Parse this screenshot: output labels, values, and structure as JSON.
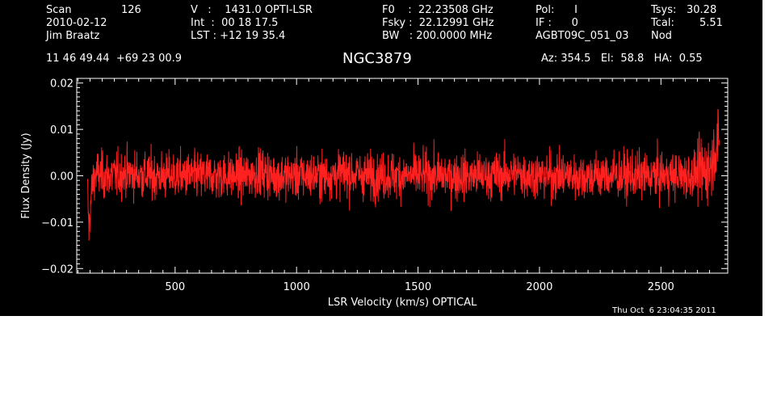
{
  "header": {
    "col1": {
      "scan_label": "Scan",
      "scan_value": "126",
      "date": "2010-02-12",
      "observer": "Jim Braatz"
    },
    "col2": {
      "v_line": "V   :    1431.0 OPTI-LSR",
      "int_line": "Int  :  00 18 17.5",
      "lst_line": "LST : +12 19 35.4"
    },
    "col3": {
      "f0_line": "F0    :  22.23508 GHz",
      "fsky_line": "Fsky :  22.12991 GHz",
      "bw_line": "BW   : 200.0000 MHz"
    },
    "col4": {
      "pol_line": "Pol:      I",
      "if_line": "IF :      0",
      "project": "AGBT09C_051_03"
    },
    "col5": {
      "tsys_label": "Tsys:",
      "tsys_value": "30.28",
      "tcal_label": "Tcal:",
      "tcal_value": "5.51",
      "mode": "Nod"
    },
    "coords": "11 46 49.44  +69 23 00.9",
    "source": "NGC3879",
    "pointing": "Az: 354.5   El:  58.8   HA:  0.55"
  },
  "timestamp": "Thu Oct  6 23:04:35 2011",
  "colors": {
    "background": "#000000",
    "axes": "#ffffff",
    "trace": "#ff2020"
  },
  "chart_data": {
    "type": "line",
    "title": "NGC3879",
    "xlabel": "LSR Velocity (km/s) OPTICAL",
    "ylabel": "Flux Density (Jy)",
    "xlim": [
      95,
      2775
    ],
    "ylim": [
      -0.021,
      0.021
    ],
    "x_ticks": [
      500,
      1000,
      1500,
      2000,
      2500
    ],
    "x_tick_labels": [
      "500",
      "1000",
      "1500",
      "2000",
      "2500"
    ],
    "y_ticks": [
      -0.02,
      -0.01,
      0.0,
      0.01,
      0.02
    ],
    "y_tick_labels": [
      "−0.02",
      "−0.01",
      "0.00",
      "0.01",
      "0.02"
    ],
    "series": [
      {
        "x": [
          140,
          145,
          150,
          155,
          160,
          170,
          180,
          200,
          250,
          300,
          400,
          500,
          600,
          700,
          800,
          850,
          900,
          1000,
          1100,
          1200,
          1300,
          1400,
          1500,
          1600,
          1700,
          1800,
          1900,
          2000,
          2100,
          2200,
          2300,
          2400,
          2500,
          2600,
          2650,
          2680,
          2700,
          2710,
          2720,
          2730,
          2740
        ],
        "y": [
          -0.004,
          -0.012,
          -0.008,
          -0.004,
          -0.002,
          0.0,
          0.0005,
          0.0,
          0.0,
          0.0005,
          0.0,
          0.0,
          0.0,
          0.0,
          0.0,
          0.001,
          0.0,
          0.0,
          0.0,
          0.0005,
          0.0,
          0.0,
          0.0,
          0.0,
          0.0,
          0.0,
          0.0005,
          0.0,
          0.0,
          0.0,
          0.0,
          0.0,
          0.0,
          0.0,
          0.0005,
          0.001,
          0.002,
          0.003,
          0.005,
          0.007,
          0.006
        ],
        "noise_rms_jy": 0.0025
      }
    ]
  }
}
